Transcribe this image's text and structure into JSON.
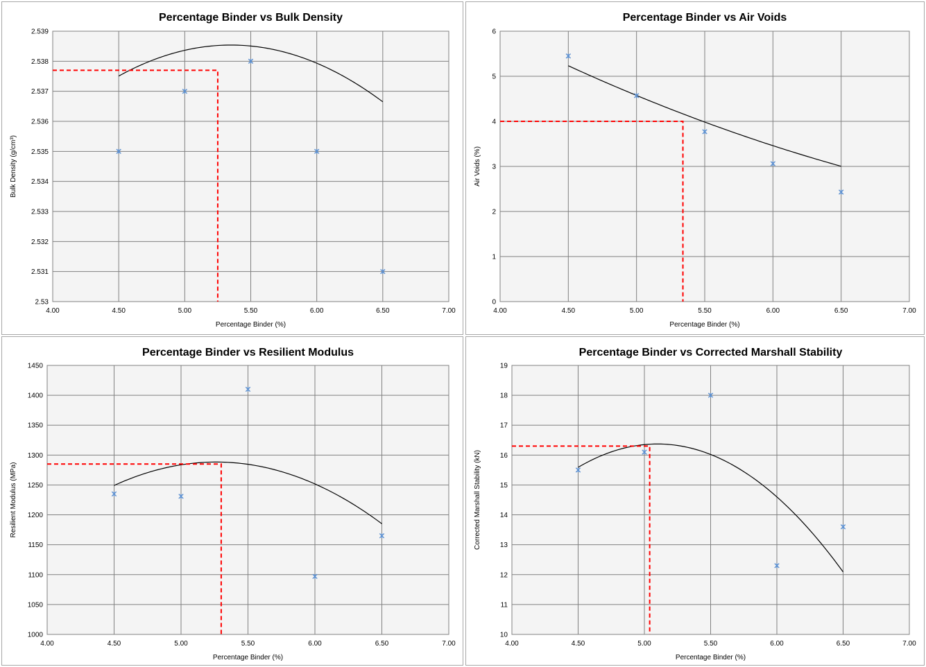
{
  "chart_data": [
    {
      "type": "scatter",
      "title": "Percentage Binder vs Bulk Density",
      "xlabel": "Percentage Binder (%)",
      "ylabel": "Bulk Density (g/cm³)",
      "xlim": [
        4.0,
        7.0
      ],
      "ylim": [
        2.53,
        2.539
      ],
      "x_ticks": [
        "4.00",
        "4.50",
        "5.00",
        "5.50",
        "6.00",
        "6.50",
        "7.00"
      ],
      "y_ticks": [
        "2.53",
        "2.531",
        "2.532",
        "2.533",
        "2.534",
        "2.535",
        "2.536",
        "2.537",
        "2.538",
        "2.539"
      ],
      "grid": true,
      "series": [
        {
          "x": [
            4.5,
            5.0,
            5.5,
            6.0,
            6.5
          ],
          "y": [
            2.535,
            2.537,
            2.538,
            2.535,
            2.531
          ]
        }
      ],
      "trendline": {
        "type": "polynomial-2",
        "x_range": [
          4.5,
          6.5
        ],
        "coefficients": [
          2.49765,
          0.0152857,
          -0.00142857
        ]
      },
      "reference": {
        "x": 5.25,
        "y": 2.5377
      },
      "colors": {
        "marker": "#5b8fd0",
        "trendline": "#000000",
        "reference": "#ff0000"
      }
    },
    {
      "type": "scatter",
      "title": "Percentage Binder vs Air Voids",
      "xlabel": "Percentage Binder (%)",
      "ylabel": "Air Voids (%)",
      "xlim": [
        4.0,
        7.0
      ],
      "ylim": [
        0,
        6
      ],
      "x_ticks": [
        "4.00",
        "4.50",
        "5.00",
        "5.50",
        "6.00",
        "6.50",
        "7.00"
      ],
      "y_ticks": [
        "0",
        "1",
        "2",
        "3",
        "4",
        "5",
        "6"
      ],
      "grid": true,
      "series": [
        {
          "x": [
            4.5,
            5.0,
            5.5,
            6.0,
            6.5
          ],
          "y": [
            5.45,
            4.57,
            3.77,
            3.06,
            2.43
          ]
        }
      ],
      "trendline": {
        "type": "polynomial-2",
        "x_range": [
          4.5,
          6.5
        ],
        "coefficients": [
          14.17,
          -2.589,
          0.134
        ]
      },
      "reference": {
        "x": 5.34,
        "y": 4.0
      },
      "colors": {
        "marker": "#5b8fd0",
        "trendline": "#000000",
        "reference": "#ff0000"
      }
    },
    {
      "type": "scatter",
      "title": "Percentage Binder vs Resilient Modulus",
      "xlabel": "Percentage Binder (%)",
      "ylabel": "Resilient Modulus (MPa)",
      "xlim": [
        4.0,
        7.0
      ],
      "ylim": [
        1000,
        1450
      ],
      "x_ticks": [
        "4.00",
        "4.50",
        "5.00",
        "5.50",
        "6.00",
        "6.50",
        "7.00"
      ],
      "y_ticks": [
        "1000",
        "1050",
        "1100",
        "1150",
        "1200",
        "1250",
        "1300",
        "1350",
        "1400",
        "1450"
      ],
      "grid": true,
      "series": [
        {
          "x": [
            4.5,
            5.0,
            5.5,
            6.0,
            6.5
          ],
          "y": [
            1235,
            1231,
            1410,
            1097,
            1165
          ]
        }
      ],
      "trendline": {
        "type": "polynomial-2",
        "x_range": [
          4.5,
          6.5
        ],
        "coefficients": [
          -578.3,
          709.4,
          -67.4
        ]
      },
      "reference": {
        "x": 5.3,
        "y": 1285
      },
      "colors": {
        "marker": "#5b8fd0",
        "trendline": "#000000",
        "reference": "#ff0000"
      }
    },
    {
      "type": "scatter",
      "title": "Percentage Binder vs Corrected Marshall Stability",
      "xlabel": "Percentage Binder (%)",
      "ylabel": "Corrected Marshall Stability (kN)",
      "xlim": [
        4.0,
        7.0
      ],
      "ylim": [
        10,
        19
      ],
      "x_ticks": [
        "4.00",
        "4.50",
        "5.00",
        "5.50",
        "6.00",
        "6.50",
        "7.00"
      ],
      "y_ticks": [
        "10",
        "11",
        "12",
        "13",
        "14",
        "15",
        "16",
        "17",
        "18",
        "19"
      ],
      "grid": true,
      "series": [
        {
          "x": [
            4.5,
            5.0,
            5.5,
            6.0,
            6.5
          ],
          "y": [
            15.5,
            16.1,
            18.0,
            12.3,
            13.6
          ]
        }
      ],
      "trendline": {
        "type": "polynomial-2",
        "x_range": [
          4.5,
          6.5
        ],
        "coefficients": [
          -40.3,
          22.23,
          -2.18
        ]
      },
      "reference": {
        "x": 5.04,
        "y": 16.3
      },
      "colors": {
        "marker": "#5b8fd0",
        "trendline": "#000000",
        "reference": "#ff0000"
      }
    }
  ]
}
